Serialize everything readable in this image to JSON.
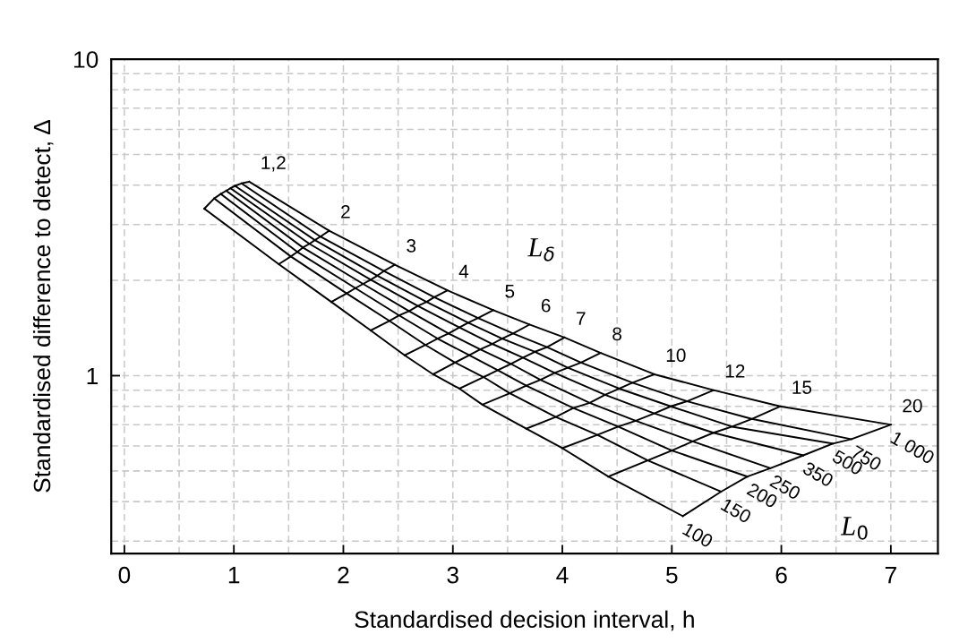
{
  "chart_data": {
    "type": "line",
    "xlabel": "Standardised decision interval, h",
    "ylabel": "Standardised difference to detect, Δ",
    "xlim": [
      -0.12,
      7.43
    ],
    "ylim": [
      0.274,
      10
    ],
    "log": "y",
    "grid": true,
    "marker": "none",
    "line_style": "solid",
    "xticks": [
      0,
      {
        "value": 0.5,
        "label": null
      },
      1,
      {
        "value": 1.5,
        "label": null
      },
      2,
      {
        "value": 2.5,
        "label": null
      },
      3,
      {
        "value": 3.5,
        "label": null
      },
      4,
      {
        "value": 4.5,
        "label": null
      },
      5,
      {
        "value": 5.5,
        "label": null
      },
      6,
      {
        "value": 6.5,
        "label": null
      },
      7
    ],
    "yticks": [
      {
        "value": 0.3,
        "label": null
      },
      {
        "value": 0.4,
        "label": null
      },
      {
        "value": 0.5,
        "label": null
      },
      {
        "value": 0.6,
        "label": null
      },
      {
        "value": 0.7,
        "label": null
      },
      {
        "value": 0.8,
        "label": null
      },
      {
        "value": 0.9,
        "label": null
      },
      1,
      {
        "value": 2,
        "label": null
      },
      {
        "value": 3,
        "label": null
      },
      {
        "value": 4,
        "label": null
      },
      {
        "value": 5,
        "label": null
      },
      {
        "value": 6,
        "label": null
      },
      {
        "value": 7,
        "label": null
      },
      {
        "value": 8,
        "label": null
      },
      {
        "value": 9,
        "label": null
      },
      10
    ],
    "series": [
      {
        "name": "100",
        "color": "#000000",
        "x": [
          0.73,
          1.41,
          1.89,
          2.25,
          2.56,
          2.82,
          3.06,
          3.27,
          3.67,
          4.0,
          4.42,
          5.1
        ],
        "values": [
          3.37,
          2.25,
          1.71,
          1.39,
          1.16,
          1.01,
          0.91,
          0.81,
          0.68,
          0.59,
          0.48,
          0.36
        ]
      },
      {
        "name": "150",
        "color": "#000000",
        "x": [
          0.82,
          1.52,
          2.03,
          2.42,
          2.75,
          3.02,
          3.28,
          3.52,
          3.94,
          4.32,
          4.78,
          5.45
        ],
        "values": [
          3.63,
          2.38,
          1.82,
          1.49,
          1.25,
          1.1,
          0.99,
          0.88,
          0.74,
          0.65,
          0.54,
          0.43
        ]
      },
      {
        "name": "200",
        "color": "#000000",
        "x": [
          0.88,
          1.58,
          2.11,
          2.51,
          2.86,
          3.15,
          3.41,
          3.67,
          4.1,
          4.51,
          5.0,
          5.69
        ],
        "values": [
          3.75,
          2.46,
          1.89,
          1.55,
          1.31,
          1.16,
          1.04,
          0.93,
          0.79,
          0.69,
          0.58,
          0.48
        ]
      },
      {
        "name": "250",
        "color": "#000000",
        "x": [
          0.93,
          1.63,
          2.18,
          2.6,
          2.96,
          3.25,
          3.53,
          3.8,
          4.25,
          4.67,
          5.19,
          5.9
        ],
        "values": [
          3.84,
          2.54,
          1.95,
          1.6,
          1.36,
          1.21,
          1.09,
          0.97,
          0.82,
          0.72,
          0.62,
          0.51
        ]
      },
      {
        "name": "350",
        "color": "#000000",
        "x": [
          0.97,
          1.69,
          2.25,
          2.68,
          3.06,
          3.36,
          3.64,
          3.93,
          4.39,
          4.84,
          5.38,
          6.2
        ],
        "values": [
          3.91,
          2.61,
          2.01,
          1.66,
          1.42,
          1.26,
          1.14,
          1.02,
          0.87,
          0.76,
          0.66,
          0.56
        ]
      },
      {
        "name": "500",
        "color": "#000000",
        "x": [
          1.01,
          1.74,
          2.31,
          2.76,
          3.14,
          3.45,
          3.75,
          4.05,
          4.52,
          4.99,
          5.55,
          6.47
        ],
        "values": [
          3.98,
          2.68,
          2.07,
          1.71,
          1.47,
          1.31,
          1.19,
          1.06,
          0.91,
          0.8,
          0.69,
          0.61
        ]
      },
      {
        "name": "750",
        "color": "#000000",
        "x": [
          1.07,
          1.79,
          2.37,
          2.83,
          3.23,
          3.55,
          3.86,
          4.17,
          4.64,
          5.14,
          5.73,
          6.64
        ],
        "values": [
          4.05,
          2.75,
          2.14,
          1.77,
          1.52,
          1.36,
          1.23,
          1.1,
          0.95,
          0.83,
          0.73,
          0.63
        ]
      },
      {
        "name": "1 000",
        "color": "#000000",
        "x": [
          1.14,
          1.87,
          2.47,
          2.95,
          3.37,
          3.7,
          4.02,
          4.35,
          4.84,
          5.38,
          5.99,
          7.0
        ],
        "values": [
          4.1,
          2.87,
          2.24,
          1.86,
          1.61,
          1.45,
          1.32,
          1.18,
          1.01,
          0.9,
          0.8,
          0.7
        ]
      }
    ],
    "annotations": [
      {
        "text": "1,2",
        "x": 1.14,
        "y": 4.1
      },
      {
        "text": "2",
        "x": 1.87,
        "y": 2.87
      },
      {
        "text": "3",
        "x": 2.47,
        "y": 2.24
      },
      {
        "text": "4",
        "x": 2.95,
        "y": 1.86
      },
      {
        "text": "5",
        "x": 3.37,
        "y": 1.61
      },
      {
        "text": "6",
        "x": 3.7,
        "y": 1.45
      },
      {
        "text": "7",
        "x": 4.02,
        "y": 1.32
      },
      {
        "text": "8",
        "x": 4.35,
        "y": 1.18
      },
      {
        "text": "10",
        "x": 4.84,
        "y": 1.01
      },
      {
        "text": "12",
        "x": 5.38,
        "y": 0.9
      },
      {
        "text": "15",
        "x": 5.99,
        "y": 0.8
      },
      {
        "text": "20",
        "x": 7.0,
        "y": 0.7
      },
      "L$_{δ}$",
      "L$_{0}$"
    ]
  }
}
